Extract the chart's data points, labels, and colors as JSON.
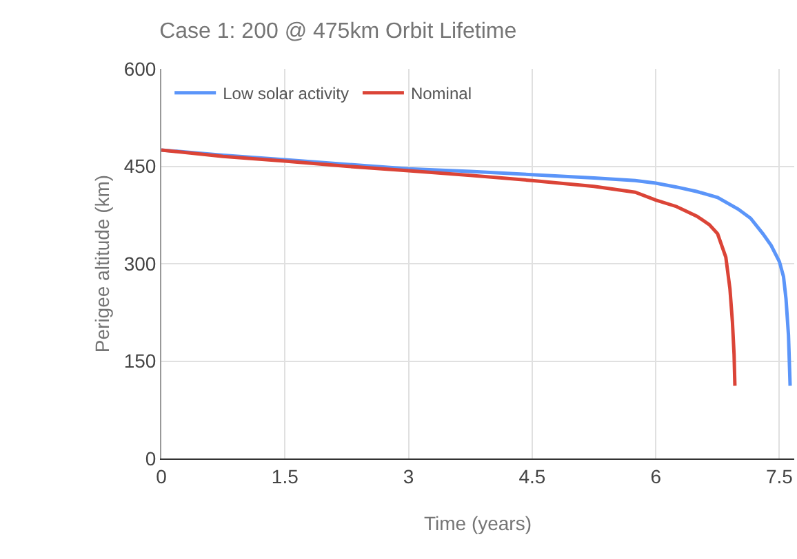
{
  "chart_data": {
    "type": "line",
    "title": "Case 1: 200 @ 475km Orbit Lifetime",
    "xlabel": "Time (years)",
    "ylabel": "Perigee altitude (km)",
    "series": [
      {
        "name": "Low solar activity",
        "color": "#5b95f9",
        "x": [
          0,
          0.75,
          1.5,
          2.25,
          3,
          3.75,
          4.5,
          5.25,
          5.75,
          6,
          6.25,
          6.5,
          6.75,
          7,
          7.15,
          7.3,
          7.4,
          7.5,
          7.55,
          7.58,
          7.61,
          7.63
        ],
        "values": [
          475,
          467,
          460,
          453,
          446,
          442,
          437,
          432,
          428,
          424,
          418,
          411,
          402,
          384,
          370,
          346,
          328,
          303,
          280,
          246,
          190,
          112
        ]
      },
      {
        "name": "Nominal",
        "color": "#db4437",
        "x": [
          0,
          0.75,
          1.5,
          2.25,
          3,
          3.75,
          4.5,
          5.25,
          5.75,
          6,
          6.25,
          6.5,
          6.65,
          6.75,
          6.85,
          6.9,
          6.93,
          6.95,
          6.96
        ],
        "values": [
          475,
          465,
          458,
          450,
          443,
          436,
          428,
          419,
          410,
          398,
          388,
          373,
          360,
          346,
          310,
          261,
          210,
          160,
          112
        ]
      }
    ],
    "xlim": [
      0,
      7.68
    ],
    "xticks": [
      0,
      1.5,
      3,
      4.5,
      6,
      7.5
    ],
    "ylim": [
      0,
      600
    ],
    "yticks": [
      0,
      150,
      300,
      450,
      600
    ],
    "grid": true,
    "legend": "top left",
    "line_style": "solid",
    "marker": "none"
  }
}
